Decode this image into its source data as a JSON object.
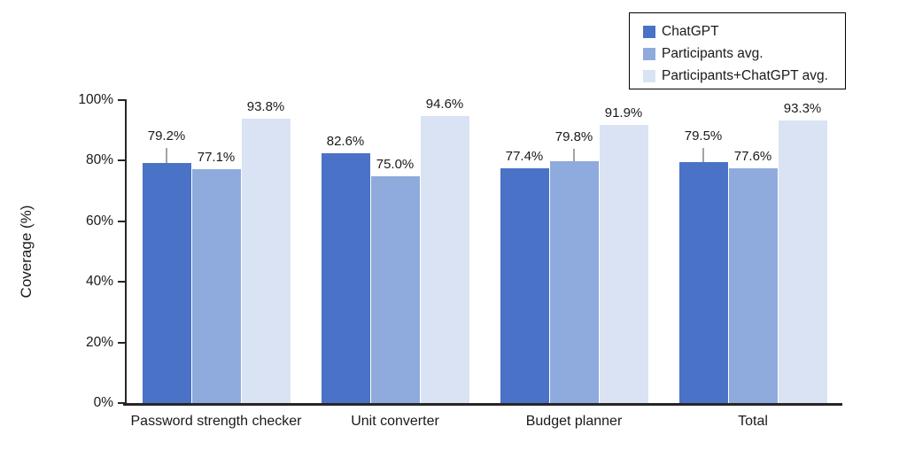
{
  "chart_data": {
    "type": "bar",
    "title": "",
    "xlabel": "",
    "ylabel": "Coverage (%)",
    "ylim": [
      0,
      100
    ],
    "grid": false,
    "axis_color": "#262626",
    "error_bar_color": "#a3a3a3",
    "yticks": [
      {
        "value": 0,
        "label": "0%"
      },
      {
        "value": 20,
        "label": "20%"
      },
      {
        "value": 40,
        "label": "40%"
      },
      {
        "value": 60,
        "label": "60%"
      },
      {
        "value": 80,
        "label": "80%"
      },
      {
        "value": 100,
        "label": "100%"
      }
    ],
    "categories": [
      "Password strength checker",
      "Unit converter",
      "Budget planner",
      "Total"
    ],
    "series": [
      {
        "name": "ChatGPT",
        "color": "#4a72c6",
        "values": [
          79.2,
          82.6,
          77.4,
          79.5
        ],
        "data_labels": [
          "79.2%",
          "82.6%",
          "77.4%",
          "79.5%"
        ],
        "error_up": [
          5.0,
          0,
          0,
          4.7
        ]
      },
      {
        "name": "Participants avg.",
        "color": "#8faadc",
        "values": [
          77.1,
          75.0,
          79.8,
          77.6
        ],
        "data_labels": [
          "77.1%",
          "75.0%",
          "79.8%",
          "77.6%"
        ],
        "error_up": [
          0,
          0,
          4.1,
          0
        ]
      },
      {
        "name": "Participants+ChatGPT avg.",
        "color": "#dae3f3",
        "values": [
          93.8,
          94.6,
          91.9,
          93.3
        ],
        "data_labels": [
          "93.8%",
          "94.6%",
          "91.9%",
          "93.3%"
        ],
        "error_up": [
          0,
          0,
          0,
          0
        ]
      }
    ],
    "legend": {
      "position": "top-right",
      "entries": [
        "ChatGPT",
        "Participants avg.",
        "Participants+ChatGPT avg."
      ]
    }
  }
}
